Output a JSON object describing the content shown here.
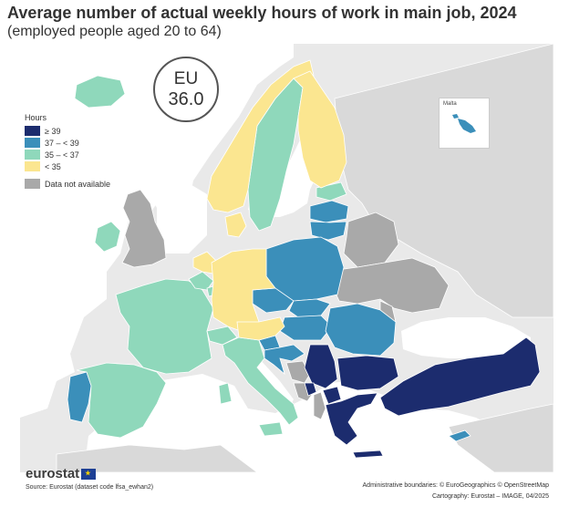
{
  "title": "Average number of actual weekly hours of work in main job, 2024",
  "subtitle": "(employed people aged 20 to 64)",
  "eu": {
    "label": "EU",
    "value": "36.0"
  },
  "legend": {
    "title": "Hours",
    "classes": [
      {
        "label": "≥ 39",
        "color": "#1c2c6e"
      },
      {
        "label": "37 – < 39",
        "color": "#3b8fba"
      },
      {
        "label": "35 – < 37",
        "color": "#8fd8bb"
      },
      {
        "label": "< 35",
        "color": "#fbe690"
      }
    ],
    "na": {
      "label": "Data not available",
      "color": "#a9a9a9"
    }
  },
  "map_colors": {
    "non_eu": "#d9d9d9",
    "sea": "#ffffff",
    "background": "#e9e9e9"
  },
  "regions": {
    "iceland": "35 – < 37",
    "ireland": "35 – < 37",
    "uk": "Data not available",
    "norway": "< 35",
    "sweden": "35 – < 37",
    "finland": "< 35",
    "estonia": "35 – < 37",
    "latvia": "37 – < 39",
    "lithuania": "37 – < 39",
    "denmark": "< 35",
    "netherlands": "< 35",
    "belgium": "35 – < 37",
    "luxembourg": "35 – < 37",
    "germany": "< 35",
    "poland": "37 – < 39",
    "czechia": "37 – < 39",
    "slovakia": "37 – < 39",
    "austria": "< 35",
    "switzerland": "35 – < 37",
    "hungary": "37 – < 39",
    "romania": "37 – < 39",
    "ukraine": "Data not available",
    "moldova": "Data not available",
    "france": "35 – < 37",
    "spain": "35 – < 37",
    "portugal": "37 – < 39",
    "italy": "35 – < 37",
    "slovenia": "37 – < 39",
    "croatia": "37 – < 39",
    "bosnia_and_herzegovina": "Data not available",
    "serbia": "≥ 39",
    "montenegro": "≥ 39",
    "north_macedonia": "≥ 39",
    "albania": "Data not available",
    "bulgaria": "≥ 39",
    "greece": "≥ 39",
    "turkiye": "≥ 39",
    "cyprus": "37 – < 39",
    "malta": "37 – < 39",
    "belarus": "Data not available"
  },
  "inset": {
    "label": "Malta"
  },
  "footer": {
    "logo": "eurostat",
    "source": "Source: Eurostat (dataset code lfsa_ewhan2)",
    "admin": "Administrative boundaries: © EuroGeographics © OpenStreetMap",
    "carto": "Cartography: Eurostat – IMAGE, 04/2025"
  }
}
